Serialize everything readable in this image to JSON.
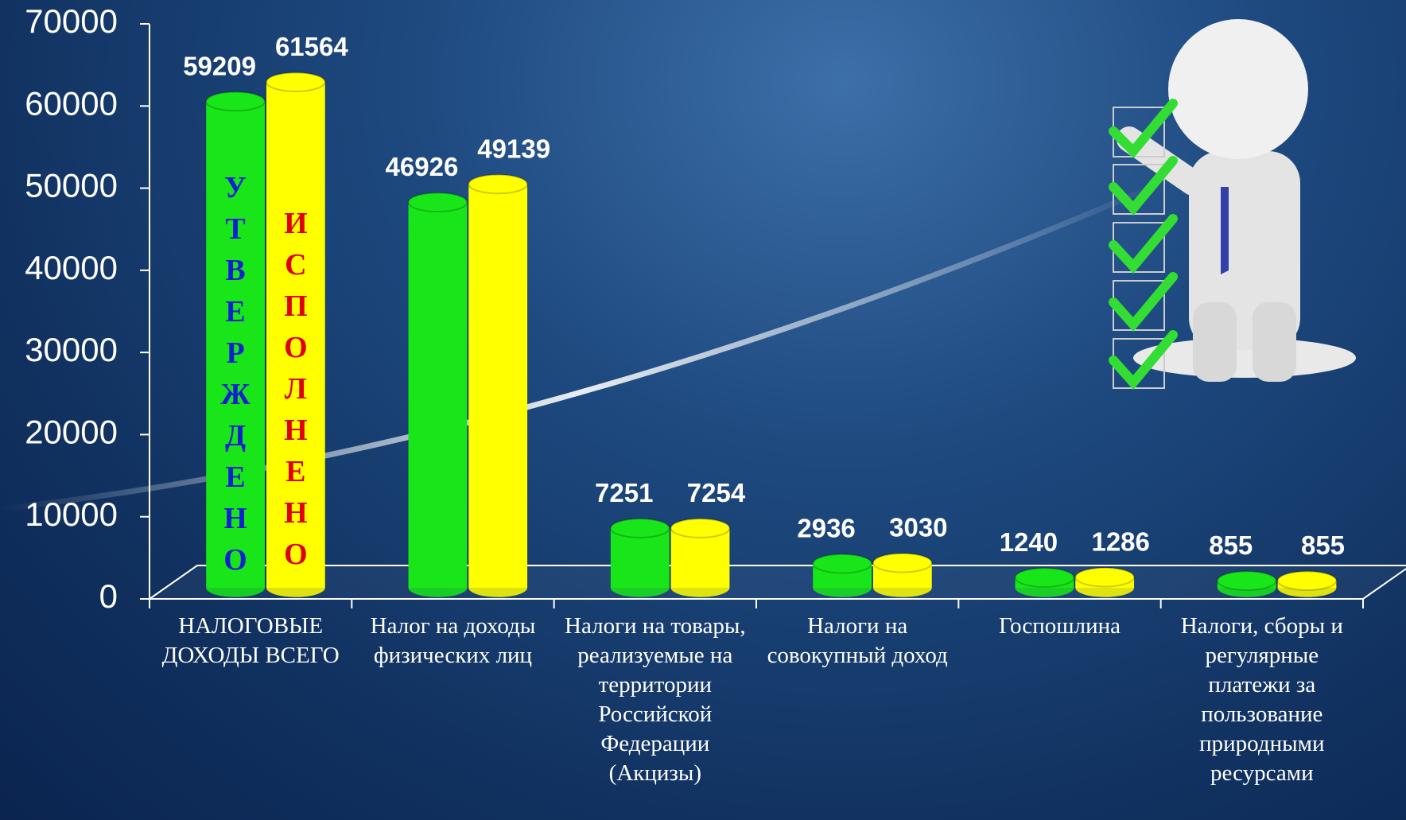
{
  "chart_data": {
    "type": "bar",
    "categories": [
      "НАЛОГОВЫЕ ДОХОДЫ ВСЕГО",
      "Налог на доходы физических лиц",
      "Налоги на товары, реализуемые на территории Российской Федерации (Акцизы)",
      "Налоги на совокупный доход",
      "Госпошлина",
      "Налоги, сборы и регулярные платежи за пользование природными ресурсами"
    ],
    "series": [
      {
        "name": "УТВЕРЖДЕНО",
        "color": "#19e619",
        "values": [
          59209,
          46926,
          7251,
          2936,
          1240,
          855
        ]
      },
      {
        "name": "ИСПОЛНЕНО",
        "color": "#ffff00",
        "values": [
          61564,
          49139,
          7254,
          3030,
          1286,
          855
        ]
      }
    ],
    "ylim": [
      0,
      70000
    ],
    "yticks": [
      0,
      10000,
      20000,
      30000,
      40000,
      50000,
      60000,
      70000
    ]
  }
}
